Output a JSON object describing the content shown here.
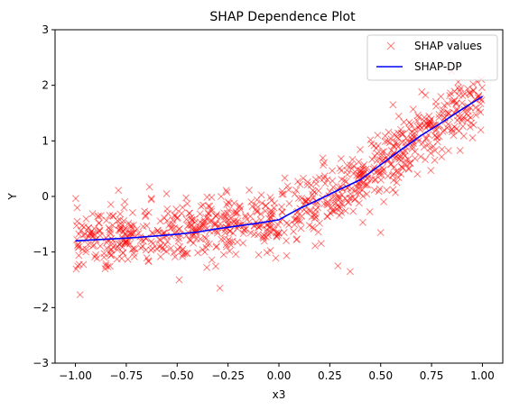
{
  "chart_data": {
    "type": "scatter",
    "title": "SHAP Dependence Plot",
    "xlabel": "x3",
    "ylabel": "Y",
    "xlim": [
      -1.1,
      1.1
    ],
    "ylim": [
      -3,
      3
    ],
    "xticks": [
      -1.0,
      -0.75,
      -0.5,
      -0.25,
      0.0,
      0.25,
      0.5,
      0.75,
      1.0
    ],
    "xtick_labels": [
      "−1.00",
      "−0.75",
      "−0.50",
      "−0.25",
      "0.00",
      "0.25",
      "0.50",
      "0.75",
      "1.00"
    ],
    "yticks": [
      -3,
      -2,
      -1,
      0,
      1,
      2,
      3
    ],
    "ytick_labels": [
      "−3",
      "−2",
      "−1",
      "0",
      "1",
      "2",
      "3"
    ],
    "grid": false,
    "legend_position": "top-right",
    "series": [
      {
        "name": "SHAP values",
        "kind": "scatter",
        "marker": "x",
        "color": "#ff0000",
        "alpha": 0.5,
        "n_points": 900,
        "trend": [
          [
            -1.0,
            -0.8
          ],
          [
            -0.5,
            -0.68
          ],
          [
            0.0,
            -0.42
          ],
          [
            0.2,
            -0.05
          ],
          [
            0.45,
            0.4
          ],
          [
            0.7,
            1.1
          ],
          [
            1.0,
            1.8
          ]
        ],
        "spread": 0.28,
        "outliers": [
          [
            -0.29,
            -1.65
          ],
          [
            -0.49,
            -1.5
          ],
          [
            0.35,
            -1.35
          ],
          [
            0.29,
            -1.25
          ],
          [
            0.56,
            1.65
          ],
          [
            0.5,
            -0.65
          ],
          [
            -0.1,
            -1.05
          ]
        ]
      },
      {
        "name": "SHAP-DP",
        "kind": "line",
        "color": "#0000ff",
        "x": [
          -1.0,
          -0.9,
          -0.8,
          -0.7,
          -0.6,
          -0.5,
          -0.4,
          -0.3,
          -0.2,
          -0.1,
          0.0,
          0.1,
          0.2,
          0.3,
          0.4,
          0.5,
          0.6,
          0.7,
          0.8,
          0.9,
          1.0
        ],
        "y": [
          -0.8,
          -0.78,
          -0.76,
          -0.74,
          -0.71,
          -0.68,
          -0.64,
          -0.58,
          -0.53,
          -0.48,
          -0.42,
          -0.22,
          -0.05,
          0.13,
          0.3,
          0.57,
          0.84,
          1.1,
          1.33,
          1.57,
          1.8
        ]
      }
    ]
  }
}
